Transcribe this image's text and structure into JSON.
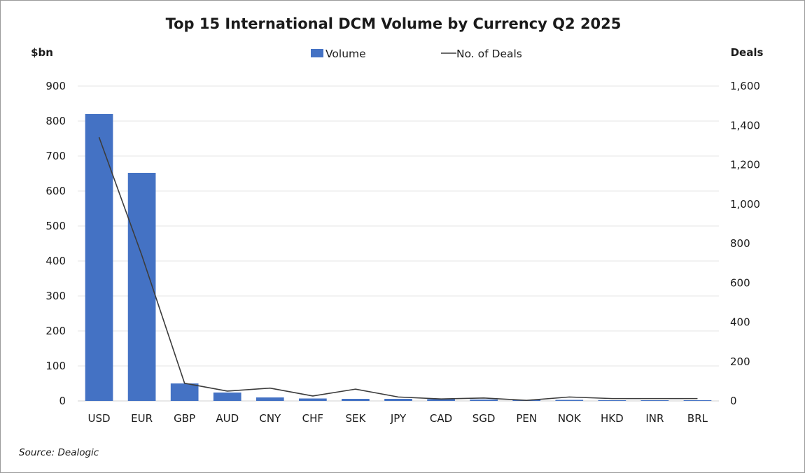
{
  "chart_data": {
    "type": "bar",
    "title": "Top 15 International DCM Volume by Currency Q2 2025",
    "ylabel_left": "$bn",
    "ylabel_right": "Deals",
    "source": "Source: Dealogic",
    "legend_placement": "top-center",
    "grid": true,
    "categories": [
      "USD",
      "EUR",
      "GBP",
      "AUD",
      "CNY",
      "CHF",
      "SEK",
      "JPY",
      "CAD",
      "SGD",
      "PEN",
      "NOK",
      "HKD",
      "INR",
      "BRL"
    ],
    "ylim_left": [
      0,
      900
    ],
    "ylim_right": [
      0,
      1600
    ],
    "yticks_left": [
      "0",
      "100",
      "200",
      "300",
      "400",
      "500",
      "600",
      "700",
      "800",
      "900"
    ],
    "yticks_right": [
      "0",
      "200",
      "400",
      "600",
      "800",
      "1,000",
      "1,200",
      "1,400",
      "1,600"
    ],
    "series": [
      {
        "name": "Volume",
        "type": "bar",
        "axis": "left",
        "color": "#4472c4",
        "values": [
          820,
          652,
          50,
          24,
          10,
          7,
          6,
          6,
          5,
          4,
          3,
          3,
          2,
          2,
          2
        ]
      },
      {
        "name": "No. of Deals",
        "type": "line",
        "axis": "right",
        "color": "#3c3c3c",
        "values": [
          1340,
          740,
          90,
          50,
          65,
          25,
          60,
          20,
          10,
          15,
          3,
          20,
          12,
          12,
          12
        ]
      }
    ]
  }
}
